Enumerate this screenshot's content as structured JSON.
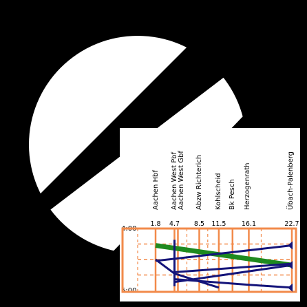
{
  "colors": {
    "background": "#000000",
    "circle": "#ffffff",
    "paper": "#ffffff",
    "grid": "#f28a4a",
    "train_green": "#1f8a1f",
    "train_navy": "#14147a"
  },
  "time_labels": {
    "start": "4:00",
    "end": "5:00"
  },
  "chart_data": {
    "type": "line",
    "title": "",
    "xlabel": "",
    "ylabel": "",
    "y_range": [
      "4:00",
      "5:00"
    ],
    "stations": [
      {
        "name": "Aachen Hbf",
        "km": 1.8,
        "km_label": "1.8"
      },
      {
        "name": "Aachen West Pbf",
        "km": 4.7,
        "km_label": "4.7"
      },
      {
        "name": "Aachen West Gbf",
        "km": 4.7,
        "km_label": ""
      },
      {
        "name": "Abzw Richterich",
        "km": 8.5,
        "km_label": "8.5"
      },
      {
        "name": "Kohlscheid",
        "km": 11.5,
        "km_label": "11.5"
      },
      {
        "name": "Bk Pesch",
        "km": 13.6,
        "km_label": ""
      },
      {
        "name": "Herzogenrath",
        "km": 16.1,
        "km_label": "16.1"
      },
      {
        "name": "Übach-Palenberg",
        "km": 22.7,
        "km_label": "22.7"
      }
    ],
    "series": [
      {
        "color": "green",
        "points": [
          [
            1.8,
            24
          ],
          [
            22.7,
            52
          ]
        ]
      },
      {
        "color": "navy",
        "points": [
          [
            1.8,
            46
          ],
          [
            22.7,
            24
          ]
        ]
      },
      {
        "color": "navy",
        "points": [
          [
            4.7,
            16
          ],
          [
            4.7,
            82
          ]
        ]
      },
      {
        "color": "navy",
        "points": [
          [
            4.7,
            62
          ],
          [
            22.7,
            50
          ]
        ]
      },
      {
        "color": "navy",
        "points": [
          [
            1.8,
            44
          ],
          [
            4.7,
            64
          ],
          [
            11.5,
            84
          ]
        ]
      },
      {
        "color": "navy",
        "points": [
          [
            4.7,
            72
          ],
          [
            16.1,
            80
          ],
          [
            22.7,
            84
          ]
        ]
      },
      {
        "color": "navy",
        "points": [
          [
            4.7,
            76
          ],
          [
            22.7,
            52
          ]
        ]
      }
    ],
    "arrowheads": [
      {
        "km": 22.7,
        "minute": 24
      },
      {
        "km": 22.7,
        "minute": 52
      },
      {
        "km": 22.7,
        "minute": 84
      }
    ]
  }
}
